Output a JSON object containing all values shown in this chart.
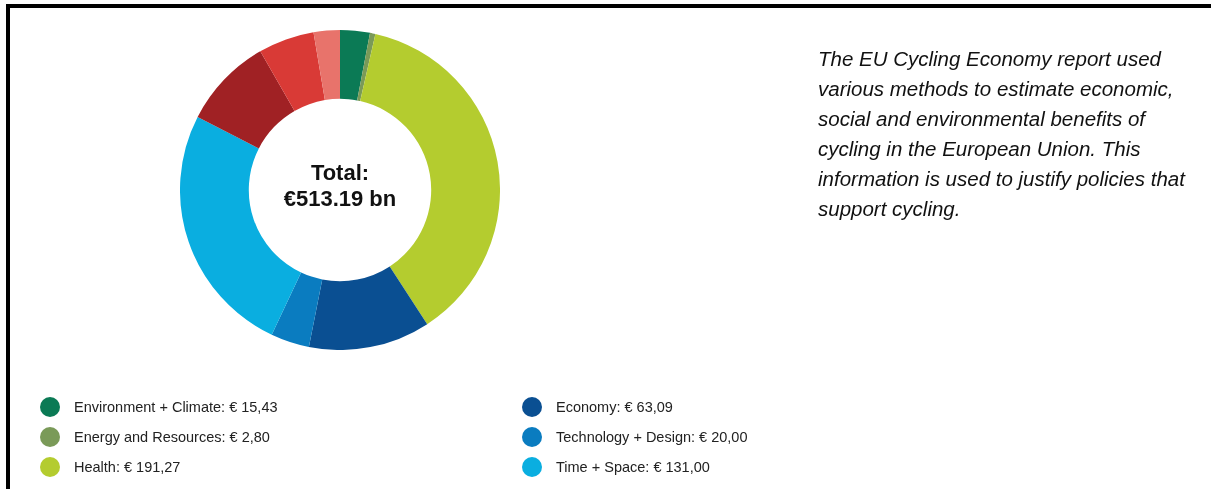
{
  "chart_data": {
    "type": "donut",
    "subtitle": "The EU Cycling Economy report used various methods to estimate economic, social and environmental benefits of cycling in the European Union. This information is used to justify policies that support cycling.",
    "annotations": [
      "Total:",
      "€513.19 bn"
    ],
    "categories": [
      "Environment + Climate",
      "Energy and Resources",
      "Health",
      "Economy",
      "Technology + Design",
      "Time + Space",
      null,
      null,
      null
    ],
    "values": [
      15.43,
      2.8,
      191.27,
      63.09,
      20.0,
      131.0,
      47.0,
      29.0,
      13.6
    ],
    "value_labels": [
      "€ 15,43",
      "€ 2,80",
      "€ 191,27",
      "€ 63,09",
      "€ 20,00",
      "€ 131,00",
      null,
      null,
      null
    ],
    "colors": [
      "#0b7a55",
      "#7a9a58",
      "#b4cc2f",
      "#0a4f92",
      "#0a7cc0",
      "#0aaee0",
      "#a02124",
      "#d93a36",
      "#e8736b"
    ],
    "legend": "bottom"
  }
}
